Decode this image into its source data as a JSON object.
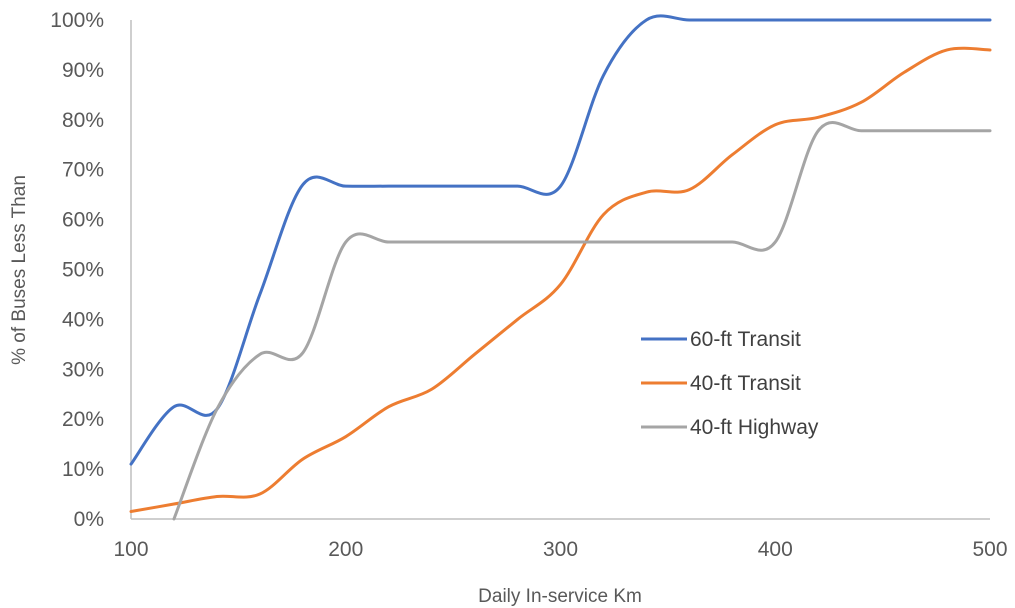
{
  "chart_data": {
    "type": "line",
    "title": "",
    "xlabel": "Daily In-service Km",
    "ylabel": "% of Buses Less Than",
    "xlim": [
      100,
      500
    ],
    "ylim": [
      0,
      100
    ],
    "x_ticks": [
      100,
      200,
      300,
      400,
      500
    ],
    "x_tick_labels": [
      "100",
      "200",
      "300",
      "400",
      "500"
    ],
    "y_ticks": [
      0,
      10,
      20,
      30,
      40,
      50,
      60,
      70,
      80,
      90,
      100
    ],
    "y_tick_labels": [
      "0%",
      "10%",
      "20%",
      "30%",
      "40%",
      "50%",
      "60%",
      "70%",
      "80%",
      "90%",
      "100%"
    ],
    "grid": false,
    "legend_position": "center-right",
    "series": [
      {
        "name": "60-ft Transit",
        "color": "#4472C4",
        "x": [
          100,
          120,
          140,
          160,
          180,
          200,
          220,
          240,
          260,
          280,
          300,
          320,
          340,
          360,
          380,
          400,
          420,
          440,
          460,
          480,
          500
        ],
        "y": [
          11,
          22.5,
          22,
          45,
          67,
          66.7,
          66.7,
          66.7,
          66.7,
          66.7,
          66.7,
          88.9,
          100,
          100,
          100,
          100,
          100,
          100,
          100,
          100,
          100
        ]
      },
      {
        "name": "40-ft Transit",
        "color": "#ED7D31",
        "x": [
          100,
          120,
          140,
          160,
          180,
          200,
          220,
          240,
          260,
          280,
          300,
          320,
          340,
          360,
          380,
          400,
          420,
          440,
          460,
          480,
          500
        ],
        "y": [
          1.5,
          3,
          4.5,
          5,
          12,
          16.5,
          22.5,
          26,
          33,
          40,
          47,
          61,
          65.5,
          66,
          73,
          79,
          80.5,
          83.5,
          89.5,
          94,
          94
        ]
      },
      {
        "name": "40-ft Highway",
        "color": "#A5A5A5",
        "x": [
          120,
          140,
          160,
          180,
          200,
          220,
          240,
          260,
          280,
          300,
          320,
          340,
          360,
          380,
          400,
          420,
          440,
          460,
          480,
          500
        ],
        "y": [
          0,
          22,
          33,
          33.3,
          55.5,
          55.5,
          55.5,
          55.5,
          55.5,
          55.5,
          55.5,
          55.5,
          55.5,
          55.5,
          55.5,
          77.8,
          77.8,
          77.8,
          77.8,
          77.8
        ]
      }
    ]
  }
}
